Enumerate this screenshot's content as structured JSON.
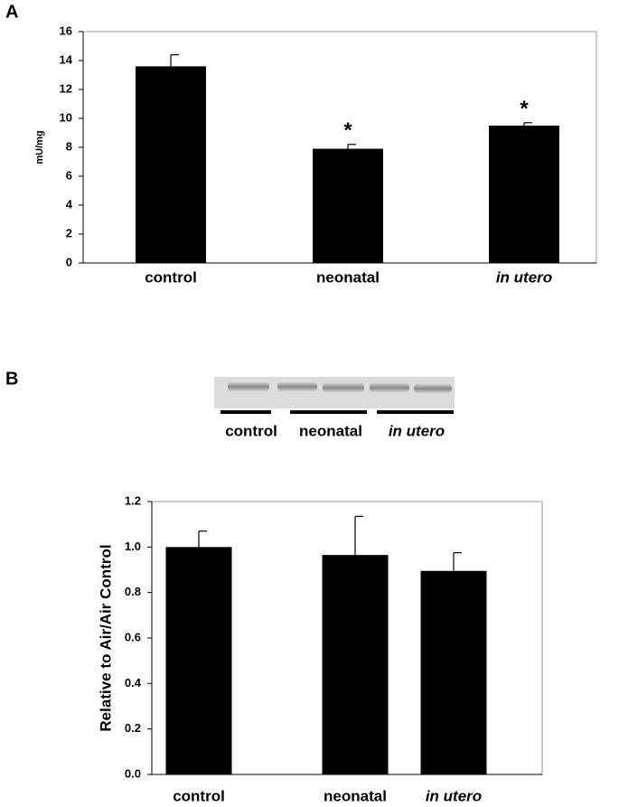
{
  "chart_data": [
    {
      "type": "bar",
      "panel": "A",
      "ylabel": "mU/mg",
      "categories": [
        "control",
        "neonatal",
        "in utero"
      ],
      "category_styles": [
        "normal",
        "normal",
        "italic"
      ],
      "values": [
        13.6,
        7.9,
        9.5
      ],
      "errors": [
        0.8,
        0.3,
        0.2
      ],
      "annotations": [
        null,
        "*",
        "*"
      ],
      "color": "#000000",
      "ylim": [
        0,
        16
      ],
      "yticks": [
        0,
        2,
        4,
        6,
        8,
        10,
        12,
        14,
        16
      ]
    },
    {
      "type": "bar",
      "panel": "B",
      "ylabel": "Relative to Air/Air Control",
      "blot_labels": [
        "control",
        "neonatal",
        "in utero"
      ],
      "categories": [
        "control",
        "neonatal",
        "in utero"
      ],
      "category_styles": [
        "normal",
        "normal",
        "italic"
      ],
      "values": [
        1.0,
        0.965,
        0.895
      ],
      "errors": [
        0.07,
        0.17,
        0.08
      ],
      "color": "#000000",
      "ylim": [
        0,
        1.2
      ],
      "yticks": [
        {
          "value": 0,
          "label": "0.0"
        },
        {
          "value": 0.2,
          "label": "0.2"
        },
        {
          "value": 0.4,
          "label": "0.4"
        },
        {
          "value": 0.6,
          "label": "0.6"
        },
        {
          "value": 0.8,
          "label": "0.8"
        },
        {
          "value": 1.0,
          "label": "1.0"
        },
        {
          "value": 1.2,
          "label": "1.2"
        }
      ]
    }
  ]
}
